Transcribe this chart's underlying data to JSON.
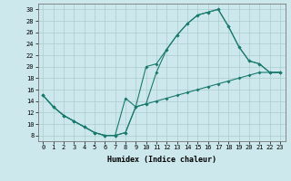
{
  "xlabel": "Humidex (Indice chaleur)",
  "bg_color": "#cce8ec",
  "line_color": "#1a7a6e",
  "grid_color": "#aacccc",
  "xlim": [
    -0.5,
    23.5
  ],
  "ylim": [
    7,
    31
  ],
  "xticks": [
    0,
    1,
    2,
    3,
    4,
    5,
    6,
    7,
    8,
    9,
    10,
    11,
    12,
    13,
    14,
    15,
    16,
    17,
    18,
    19,
    20,
    21,
    22,
    23
  ],
  "yticks": [
    8,
    10,
    12,
    14,
    16,
    18,
    20,
    22,
    24,
    26,
    28,
    30
  ],
  "line1_y": [
    15,
    13,
    11.5,
    10.5,
    9.5,
    8.5,
    8,
    8,
    8.5,
    13,
    20,
    20.5,
    23,
    25.5,
    27.5,
    29,
    29.5,
    30,
    27,
    23.5,
    21,
    20.5,
    19,
    19
  ],
  "line2_y": [
    15,
    13,
    11.5,
    10.5,
    9.5,
    8.5,
    8,
    8,
    8.5,
    13,
    13.5,
    14,
    14.5,
    15,
    15.5,
    16,
    16.5,
    17,
    17.5,
    18,
    18.5,
    19,
    19,
    19
  ],
  "line3_y": [
    15,
    13,
    11.5,
    10.5,
    9.5,
    8.5,
    8,
    8,
    14.5,
    13,
    13.5,
    19,
    23,
    25.5,
    27.5,
    29,
    29.5,
    30,
    27,
    23.5,
    21,
    20.5,
    19,
    19
  ],
  "tick_fontsize": 5,
  "xlabel_fontsize": 6
}
